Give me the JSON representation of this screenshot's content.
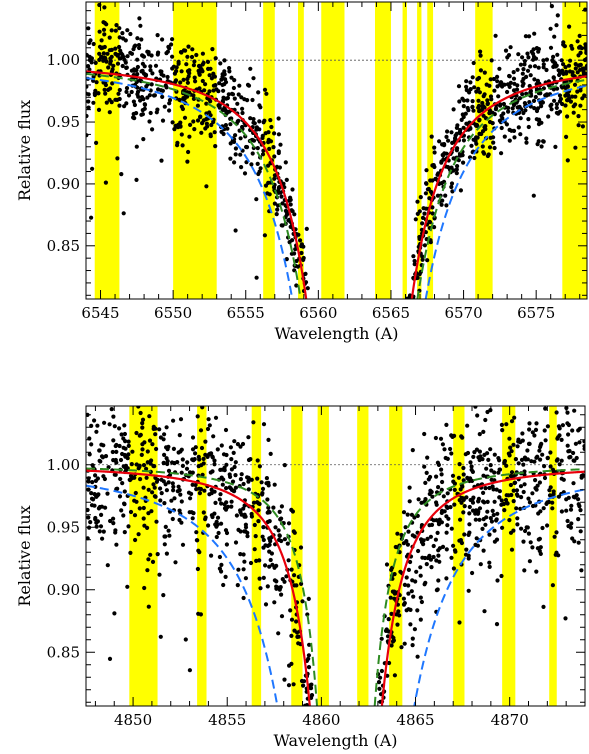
{
  "chart_data": [
    {
      "type": "scatter",
      "xlabel": "Wavelength (A)",
      "ylabel": "Relative flux",
      "xlim": [
        6544,
        6578.5
      ],
      "ylim": [
        0.807,
        1.047
      ],
      "xticks": [
        6545,
        6550,
        6555,
        6560,
        6565,
        6570,
        6575
      ],
      "xtick_labels": [
        "6545",
        "6550",
        "6555",
        "6560",
        "6565",
        "6570",
        "6575"
      ],
      "yticks": [
        0.85,
        0.9,
        0.95,
        1.0
      ],
      "ytick_labels": [
        "0.85",
        "0.90",
        "0.95",
        "1.00"
      ],
      "reference_line": 1.0,
      "line_center": 6562.8,
      "highlight_bands": [
        [
          6544.6,
          6546.3
        ],
        [
          6550.0,
          6553.0
        ],
        [
          6556.2,
          6557.0
        ],
        [
          6558.6,
          6559.0
        ],
        [
          6560.2,
          6561.8
        ],
        [
          6563.9,
          6565.0
        ],
        [
          6565.8,
          6566.1
        ],
        [
          6566.8,
          6567.1
        ],
        [
          6567.5,
          6567.9
        ],
        [
          6570.8,
          6572.0
        ],
        [
          6576.8,
          6578.5
        ]
      ],
      "series": [
        {
          "style": "red-solid",
          "color": "#e8000b",
          "center": 6562.8,
          "depth": 0.9,
          "halfwidth": 1.9
        },
        {
          "style": "blue-dashed",
          "color": "#1f77ff",
          "center": 6562.8,
          "depth": 0.9,
          "halfwidth": 2.4
        },
        {
          "style": "green-dashed",
          "color": "#2e8b22",
          "center": 6562.8,
          "depth": 0.9,
          "halfwidth": 2.1
        }
      ],
      "points": {
        "marker": "filled-circle",
        "color": "#000000",
        "count": 1600,
        "scatter_sigma": 0.02,
        "seed": 11
      }
    },
    {
      "type": "scatter",
      "xlabel": "Wavelength (A)",
      "ylabel": "Relative flux",
      "xlim": [
        4847.5,
        4874
      ],
      "ylim": [
        0.807,
        1.047
      ],
      "xticks": [
        4850,
        4855,
        4860,
        4865,
        4870
      ],
      "xtick_labels": [
        "4850",
        "4855",
        "4860",
        "4865",
        "4870"
      ],
      "yticks": [
        0.85,
        0.9,
        0.95,
        1.0
      ],
      "ytick_labels": [
        "0.85",
        "0.90",
        "0.95",
        "1.00"
      ],
      "reference_line": 1.0,
      "line_center": 4861.3,
      "highlight_bands": [
        [
          4849.8,
          4851.3
        ],
        [
          4853.4,
          4853.9
        ],
        [
          4856.3,
          4856.8
        ],
        [
          4858.4,
          4859.0
        ],
        [
          4859.8,
          4860.4
        ],
        [
          4861.9,
          4862.5
        ],
        [
          4863.6,
          4864.3
        ],
        [
          4867.0,
          4867.6
        ],
        [
          4869.6,
          4870.3
        ],
        [
          4872.1,
          4872.5
        ]
      ],
      "series": [
        {
          "style": "red-solid",
          "color": "#e8000b",
          "center": 4861.3,
          "depth": 0.9,
          "halfwidth": 1.0
        },
        {
          "style": "blue-dashed",
          "color": "#1f77ff",
          "center": 4861.3,
          "depth": 0.9,
          "halfwidth": 1.9
        },
        {
          "style": "green-dashed",
          "color": "#2e8b22",
          "center": 4861.3,
          "depth": 0.9,
          "halfwidth": 0.8
        }
      ],
      "points": {
        "marker": "filled-circle",
        "color": "#000000",
        "count": 1500,
        "scatter_sigma": 0.035,
        "seed": 29
      }
    }
  ]
}
